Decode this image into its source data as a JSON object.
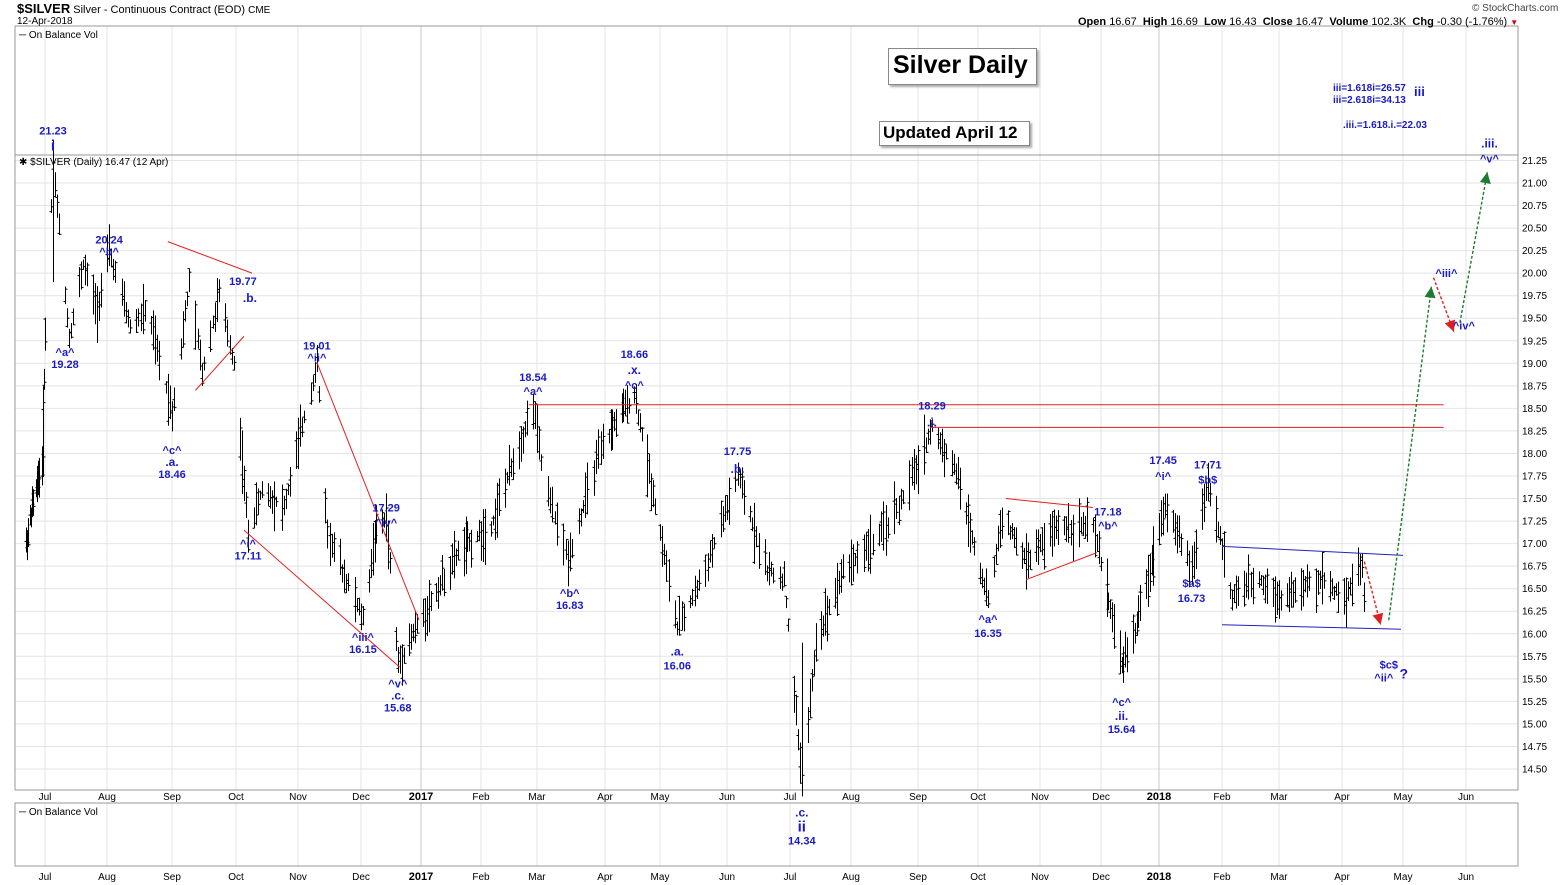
{
  "header": {
    "symbol": "$SILVER",
    "description": "Silver - Continuous Contract (EOD)",
    "exchange": "CME",
    "date": "12-Apr-2018",
    "ohlc": [
      {
        "label": "Open",
        "value": "16.67"
      },
      {
        "label": "High",
        "value": "16.69"
      },
      {
        "label": "Low",
        "value": "16.43"
      },
      {
        "label": "Close",
        "value": "16.47"
      },
      {
        "label": "Volume",
        "value": "102.3K"
      },
      {
        "label": "Chg",
        "value": "-0.30 (-1.76%)"
      }
    ],
    "watermark": "© StockCharts.com"
  },
  "panels": {
    "top": "On Balance Vol",
    "price": "$SILVER (Daily) 16.47 (12 Apr)",
    "bottom": "On Balance Vol"
  },
  "boxes": {
    "title": "Silver Daily",
    "updated": "Updated April 12"
  },
  "targets": {
    "line1": "iii=1.618i=26.57",
    "line2": "iii=2.618i=34.13",
    "wave": "iii",
    "line3": ".iii.=1.618.i.=22.03"
  },
  "colors": {
    "wave_label": "#1a1ac8",
    "trendline": "#e02020",
    "channel": "#2020c0",
    "arrow_up": "#1e7a2e",
    "arrow_down": "#e02020"
  },
  "chart_data": {
    "type": "bar",
    "ohlc_style": "high-low bars",
    "y_scale": "linear",
    "ylim": [
      14.34,
      21.3
    ],
    "y_ticks": [
      "14.50",
      "14.75",
      "15.00",
      "15.25",
      "15.50",
      "15.75",
      "16.00",
      "16.25",
      "16.50",
      "16.75",
      "17.00",
      "17.25",
      "17.50",
      "17.75",
      "18.00",
      "18.25",
      "18.50",
      "18.75",
      "19.00",
      "19.25",
      "19.50",
      "19.75",
      "20.00",
      "20.25",
      "20.50",
      "20.75",
      "21.00",
      "21.25"
    ],
    "x_ticks": [
      "Jul",
      "Aug",
      "Sep",
      "Oct",
      "Nov",
      "Dec",
      "2017",
      "Feb",
      "Mar",
      "Apr",
      "May",
      "Jun",
      "Jul",
      "Aug",
      "Sep",
      "Oct",
      "Nov",
      "Dec",
      "2018",
      "Feb",
      "Mar",
      "Apr",
      "May",
      "Jun"
    ],
    "grid": true,
    "wave_labels": [
      {
        "text": "21.23",
        "date": "2016-07-05",
        "price": 21.23
      },
      {
        "text": "i",
        "date": "2016-07-05",
        "price": 21.23
      },
      {
        "text": "20.24",
        "date": "2016-08-02",
        "price": 20.24
      },
      {
        "text": "^b^",
        "date": "2016-08-02",
        "price": 20.24
      },
      {
        "text": "^a^",
        "date": "2016-07-13",
        "price": 19.28
      },
      {
        "text": "19.28",
        "date": "2016-07-13",
        "price": 19.28
      },
      {
        "text": "^c^",
        "date": "2016-09-01",
        "price": 18.46
      },
      {
        "text": ".a.",
        "date": "2016-09-01",
        "price": 18.46
      },
      {
        "text": "18.46",
        "date": "2016-09-01",
        "price": 18.46
      },
      {
        "text": "19.77",
        "date": "2016-09-23",
        "price": 19.77
      },
      {
        "text": ".b.",
        "date": "2016-09-23",
        "price": 19.77
      },
      {
        "text": "^i^",
        "date": "2016-10-07",
        "price": 17.11
      },
      {
        "text": "17.11",
        "date": "2016-10-07",
        "price": 17.11
      },
      {
        "text": "19.01",
        "date": "2016-11-10",
        "price": 19.01
      },
      {
        "text": "^ii^",
        "date": "2016-11-10",
        "price": 19.01
      },
      {
        "text": "^iii^",
        "date": "2016-12-02",
        "price": 16.15
      },
      {
        "text": "16.15",
        "date": "2016-12-02",
        "price": 16.15
      },
      {
        "text": "17.29",
        "date": "2016-12-14",
        "price": 17.29
      },
      {
        "text": "^iv^",
        "date": "2016-12-14",
        "price": 17.29
      },
      {
        "text": "^v^",
        "date": "2016-12-20",
        "price": 15.68
      },
      {
        "text": ".c.",
        "date": "2016-12-20",
        "price": 15.68
      },
      {
        "text": "15.68",
        "date": "2016-12-20",
        "price": 15.68
      },
      {
        "text": "18.54",
        "date": "2017-02-27",
        "price": 18.54
      },
      {
        "text": "^a^",
        "date": "2017-02-27",
        "price": 18.54
      },
      {
        "text": "^b^",
        "date": "2017-03-15",
        "price": 16.83
      },
      {
        "text": "16.83",
        "date": "2017-03-15",
        "price": 16.83
      },
      {
        "text": "18.66",
        "date": "2017-04-17",
        "price": 18.66
      },
      {
        "text": ".x.",
        "date": "2017-04-17",
        "price": 18.66
      },
      {
        "text": "^c^",
        "date": "2017-04-17",
        "price": 18.66
      },
      {
        "text": ".a.",
        "date": "2017-05-09",
        "price": 16.06
      },
      {
        "text": "16.06",
        "date": "2017-05-09",
        "price": 16.06
      },
      {
        "text": "17.75",
        "date": "2017-06-06",
        "price": 17.75
      },
      {
        "text": ".b.",
        "date": "2017-06-06",
        "price": 17.75
      },
      {
        "text": ".c.",
        "date": "2017-07-07",
        "price": 14.34
      },
      {
        "text": "ii",
        "date": "2017-07-07",
        "price": 14.34
      },
      {
        "text": "14.34",
        "date": "2017-07-07",
        "price": 14.34
      },
      {
        "text": "18.29",
        "date": "2017-09-08",
        "price": 18.29
      },
      {
        "text": ".i.",
        "date": "2017-09-08",
        "price": 18.29
      },
      {
        "text": "^a^",
        "date": "2017-10-06",
        "price": 16.35
      },
      {
        "text": "16.35",
        "date": "2017-10-06",
        "price": 16.35
      },
      {
        "text": "17.18",
        "date": "2017-11-27",
        "price": 17.18
      },
      {
        "text": "^b^",
        "date": "2017-11-27",
        "price": 17.18
      },
      {
        "text": "^c^",
        "date": "2017-12-12",
        "price": 15.64
      },
      {
        "text": ".ii.",
        "date": "2017-12-12",
        "price": 15.64
      },
      {
        "text": "15.64",
        "date": "2017-12-12",
        "price": 15.64
      },
      {
        "text": "17.45",
        "date": "2018-01-04",
        "price": 17.45
      },
      {
        "text": "^i^",
        "date": "2018-01-04",
        "price": 17.45
      },
      {
        "text": "17.71",
        "date": "2018-01-25",
        "price": 17.71
      },
      {
        "text": "$b$",
        "date": "2018-01-25",
        "price": 17.71
      },
      {
        "text": "$a$",
        "date": "2018-01-17",
        "price": 16.73
      },
      {
        "text": "16.73",
        "date": "2018-01-17",
        "price": 16.73
      },
      {
        "text": "$c$",
        "date": "2018-04-24",
        "price": 16.05
      },
      {
        "text": "^ii^",
        "date": "2018-04-24",
        "price": 16.05
      },
      {
        "text": "?",
        "date": "2018-04-24",
        "price": 16.05
      },
      {
        "text": "^iii^",
        "date": "2018-05-14",
        "price": 20.0
      },
      {
        "text": "^iv^",
        "date": "2018-05-28",
        "price": 19.3
      },
      {
        "text": ".iii.",
        "date": "2018-06-12",
        "price": 21.25
      },
      {
        "text": "^v^",
        "date": "2018-06-12",
        "price": 21.25
      }
    ],
    "annotations": [
      {
        "kind": "horizontal-resistance",
        "price": 18.54,
        "from": "2017-02-27",
        "to": "2018-05-20"
      },
      {
        "kind": "horizontal-resistance",
        "price": 18.29,
        "from": "2017-09-08",
        "to": "2018-05-20"
      },
      {
        "kind": "projection-up",
        "from": [
          "2018-04-24",
          16.05
        ],
        "to": [
          "2018-05-14",
          19.85
        ]
      },
      {
        "kind": "projection-down",
        "from": [
          "2018-05-17",
          19.95
        ],
        "to": [
          "2018-05-26",
          19.35
        ]
      },
      {
        "kind": "projection-up",
        "from": [
          "2018-05-28",
          19.4
        ],
        "to": [
          "2018-06-10",
          21.1
        ]
      },
      {
        "kind": "projection-down",
        "from": [
          "2018-04-14",
          16.75
        ],
        "to": [
          "2018-04-22",
          16.1
        ]
      }
    ]
  }
}
